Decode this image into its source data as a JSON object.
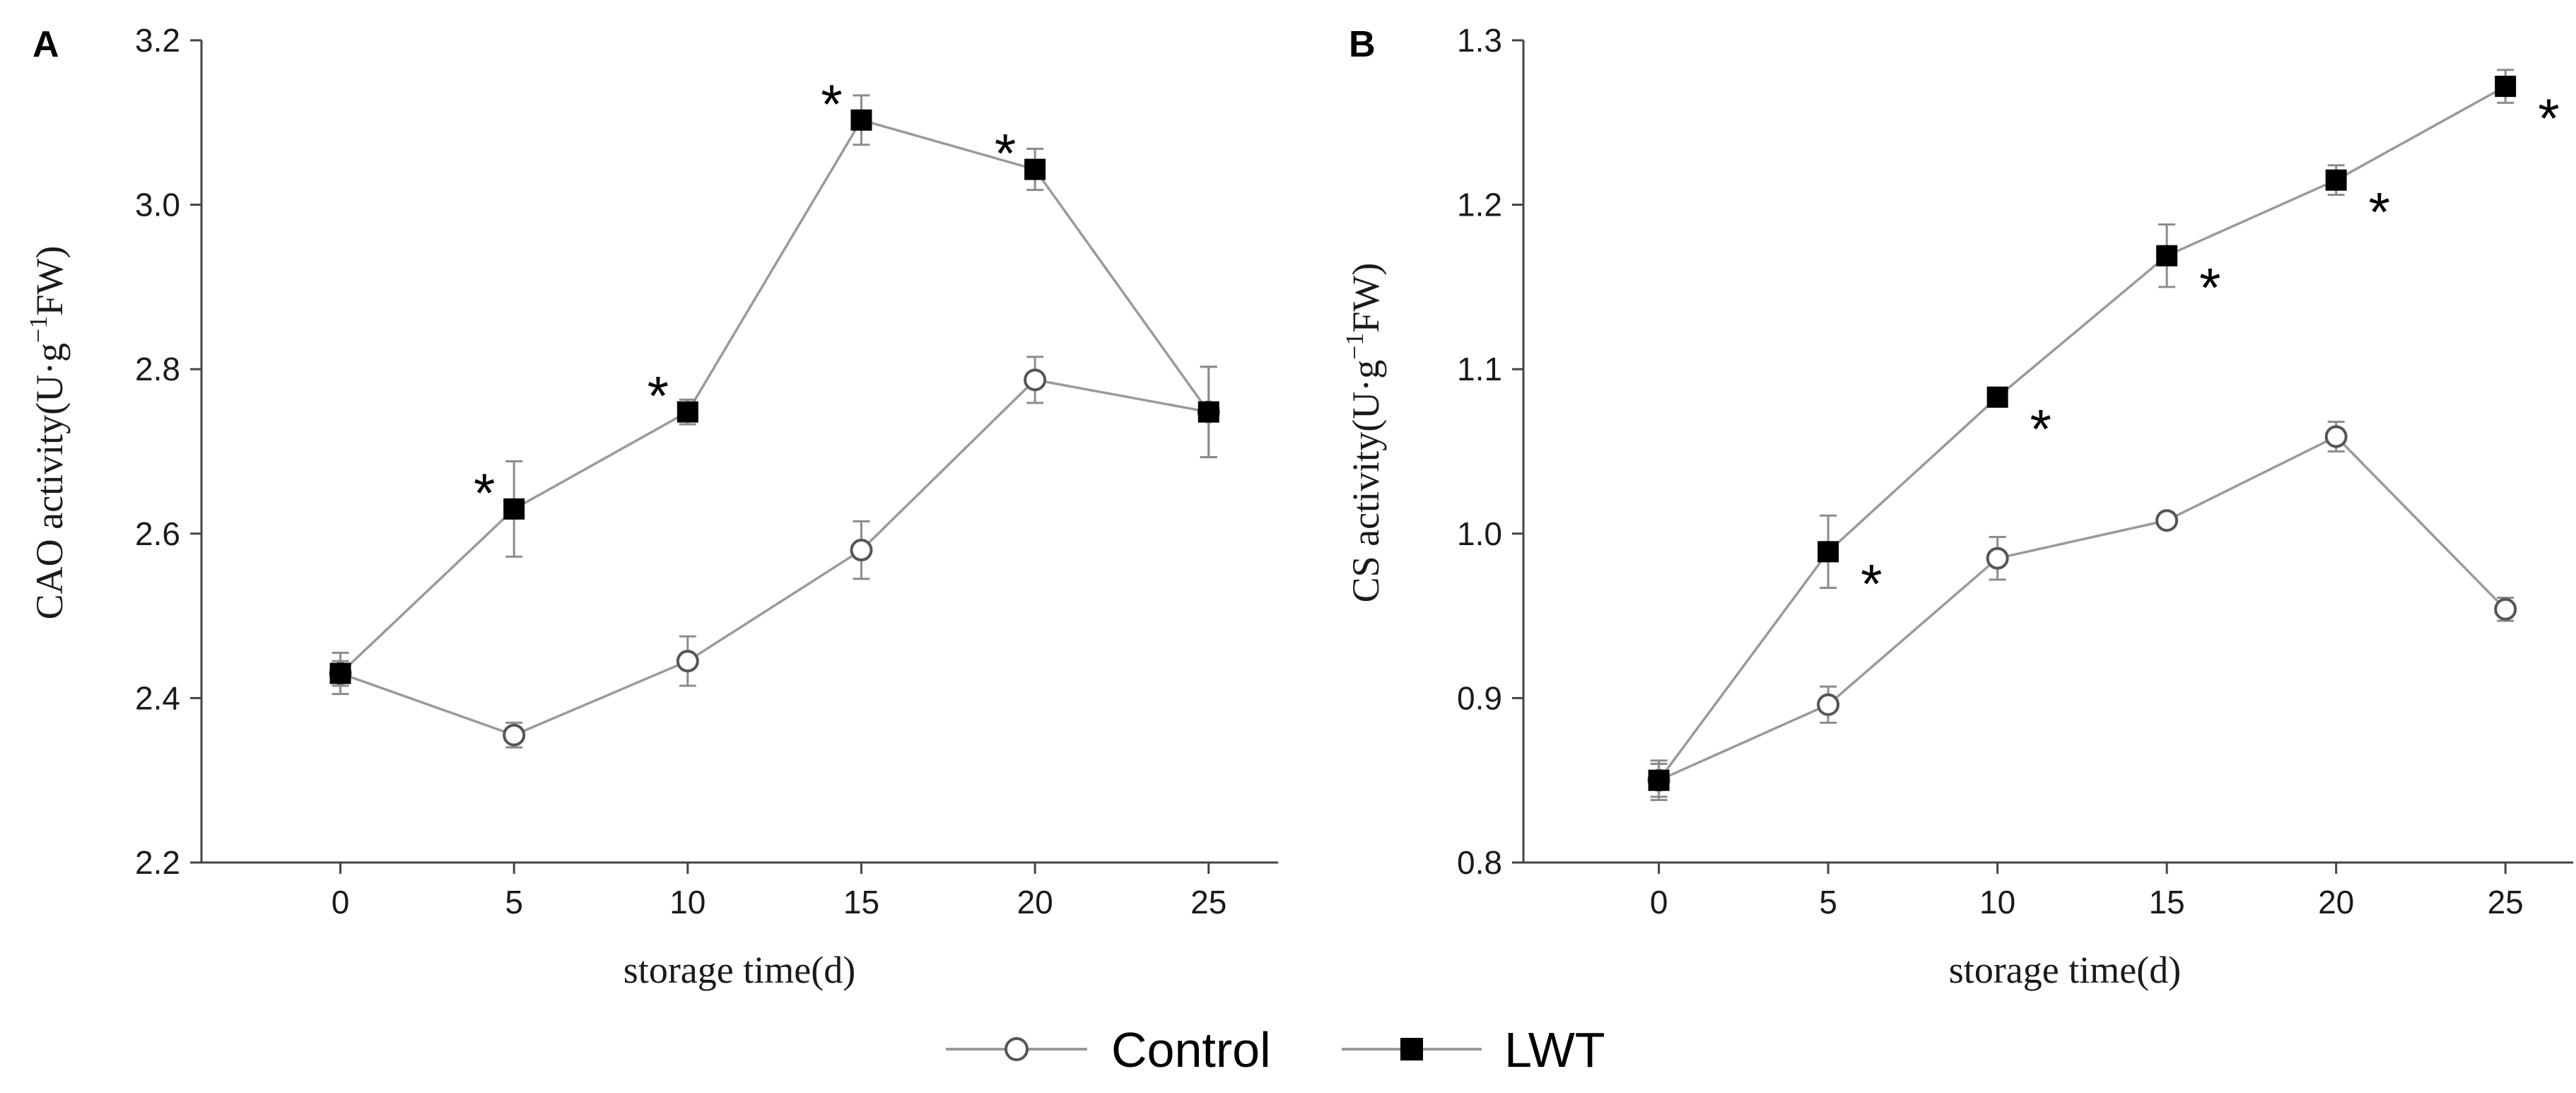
{
  "chart_data": [
    {
      "type": "line",
      "panel": "A",
      "ylabel_main": "CAO activity(U·g",
      "ylabel_sup": "−1",
      "ylabel_tail": "FW)",
      "xlabel": "storage time(d)",
      "x": [
        0,
        5,
        10,
        15,
        20,
        25
      ],
      "xlim": [
        -4,
        27
      ],
      "ylim": [
        2.2,
        3.2
      ],
      "yticks": [
        2.2,
        2.4,
        2.6,
        2.8,
        3.0,
        3.2
      ],
      "ytick_labels": [
        "2.2",
        "2.4",
        "2.6",
        "2.8",
        "3.0",
        "3.2"
      ],
      "xtick_labels": [
        "0",
        "5",
        "10",
        "15",
        "20",
        "25"
      ],
      "series": [
        {
          "name": "Control",
          "marker": "open-circle",
          "values": [
            2.43,
            2.355,
            2.445,
            2.58,
            2.787,
            2.748
          ],
          "errors": [
            0.015,
            0.015,
            0.03,
            0.035,
            0.028,
            0.055
          ]
        },
        {
          "name": "LWT",
          "marker": "filled-square",
          "values": [
            2.43,
            2.63,
            2.748,
            3.103,
            3.043,
            2.748
          ],
          "errors": [
            0.025,
            0.058,
            0.015,
            0.03,
            0.025,
            0.055
          ]
        }
      ],
      "significance": [
        {
          "x": 5,
          "label": "*"
        },
        {
          "x": 10,
          "label": "*"
        },
        {
          "x": 15,
          "label": "*"
        },
        {
          "x": 20,
          "label": "*"
        }
      ]
    },
    {
      "type": "line",
      "panel": "B",
      "ylabel_main": "CS activity(U·g",
      "ylabel_sup": "−1",
      "ylabel_tail": "FW)",
      "xlabel": "storage time(d)",
      "x": [
        0,
        5,
        10,
        15,
        20,
        25
      ],
      "xlim": [
        -4,
        27
      ],
      "ylim": [
        0.8,
        1.3
      ],
      "yticks": [
        0.8,
        0.9,
        1.0,
        1.1,
        1.2,
        1.3
      ],
      "ytick_labels": [
        "0.8",
        "0.9",
        "1.0",
        "1.1",
        "1.2",
        "1.3"
      ],
      "xtick_labels": [
        "0",
        "5",
        "10",
        "15",
        "20",
        "25"
      ],
      "series": [
        {
          "name": "Control",
          "marker": "open-circle",
          "values": [
            0.85,
            0.896,
            0.985,
            1.008,
            1.059,
            0.954
          ],
          "errors": [
            0.012,
            0.011,
            0.013,
            0.004,
            0.009,
            0.007
          ]
        },
        {
          "name": "LWT",
          "marker": "filled-square",
          "values": [
            0.85,
            0.989,
            1.083,
            1.169,
            1.215,
            1.272
          ],
          "errors": [
            0.01,
            0.022,
            0.004,
            0.019,
            0.009,
            0.01
          ]
        }
      ],
      "significance": [
        {
          "x": 5,
          "label": "*"
        },
        {
          "x": 10,
          "label": "*"
        },
        {
          "x": 15,
          "label": "*"
        },
        {
          "x": 20,
          "label": "*"
        },
        {
          "x": 25,
          "label": "*"
        }
      ]
    }
  ],
  "legend": {
    "items": [
      {
        "label": "Control",
        "marker": "open-circle"
      },
      {
        "label": "LWT",
        "marker": "filled-square"
      }
    ]
  },
  "colors": {
    "line": "#9a9a9a",
    "axis": "#444444",
    "marker_fill": "#000000",
    "open_fill": "#ffffff"
  }
}
